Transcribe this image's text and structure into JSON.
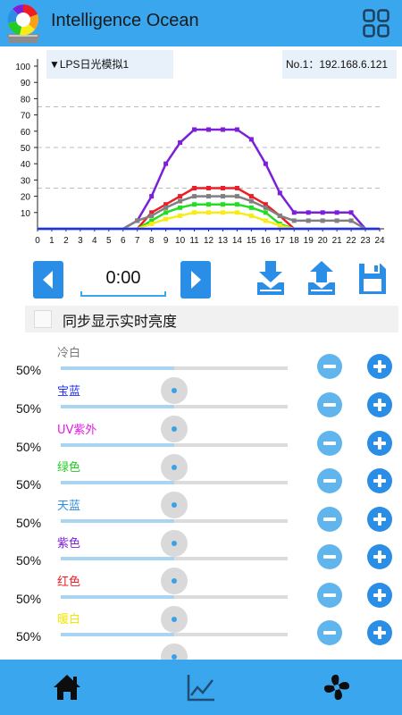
{
  "app": {
    "title": "Intelligence Ocean",
    "logo_icon": "color-wheel-logo-icon",
    "menu_icon": "grid-menu-icon"
  },
  "chart_header": {
    "profile": "▼LPS日光模拟1",
    "device": "No.1：192.168.6.121"
  },
  "chart_data": {
    "type": "line",
    "x": [
      0,
      1,
      2,
      3,
      4,
      5,
      6,
      7,
      8,
      9,
      10,
      11,
      12,
      13,
      14,
      15,
      16,
      17,
      18,
      19,
      20,
      21,
      22,
      23,
      24
    ],
    "xlim": [
      0,
      24
    ],
    "ylim": [
      0,
      100
    ],
    "y_ticks": [
      10,
      20,
      30,
      40,
      50,
      60,
      70,
      80,
      90,
      100
    ],
    "dashed_lines": [
      25,
      50,
      75
    ],
    "series": [
      {
        "color": "#7b1fd9",
        "values": [
          0,
          0,
          0,
          0,
          0,
          0,
          0,
          5,
          20,
          40,
          53,
          61,
          61,
          61,
          61,
          55,
          40,
          22,
          10,
          10,
          10,
          10,
          10,
          0,
          0
        ]
      },
      {
        "color": "#ee1c24",
        "values": [
          0,
          0,
          0,
          0,
          0,
          0,
          0,
          0,
          10,
          15,
          20,
          25,
          25,
          25,
          25,
          20,
          15,
          8,
          0,
          0,
          0,
          0,
          0,
          0,
          0
        ]
      },
      {
        "color": "#808080",
        "values": [
          0,
          0,
          0,
          0,
          0,
          0,
          0,
          5,
          8,
          13,
          17,
          20,
          20,
          20,
          20,
          17,
          13,
          8,
          5,
          5,
          5,
          5,
          5,
          0,
          0
        ]
      },
      {
        "color": "#22dd22",
        "values": [
          0,
          0,
          0,
          0,
          0,
          0,
          0,
          0,
          5,
          10,
          13,
          15,
          15,
          15,
          15,
          13,
          10,
          3,
          0,
          0,
          0,
          0,
          0,
          0,
          0
        ]
      },
      {
        "color": "#f7ec16",
        "values": [
          0,
          0,
          0,
          0,
          0,
          0,
          0,
          0,
          3,
          6,
          8,
          10,
          10,
          10,
          10,
          8,
          5,
          2,
          0,
          0,
          0,
          0,
          0,
          0,
          0
        ]
      },
      {
        "color": "#1e2cff",
        "values": [
          0,
          0,
          0,
          0,
          0,
          0,
          0,
          0,
          0,
          0,
          0,
          0,
          0,
          0,
          0,
          0,
          0,
          0,
          0,
          0,
          0,
          0,
          0,
          0,
          0
        ]
      }
    ]
  },
  "time": {
    "value": "0:00",
    "prev_icon": "left-arrow-icon",
    "next_icon": "right-arrow-icon",
    "download_icon": "download-icon",
    "upload_icon": "upload-icon",
    "save_icon": "save-icon"
  },
  "sync": {
    "label": "同步显示实时亮度",
    "checked": false
  },
  "channels": [
    {
      "name": "冷白",
      "value": "50%",
      "level": 0.5,
      "color": "#777777"
    },
    {
      "name": "宝蓝",
      "value": "50%",
      "level": 0.5,
      "color": "#1e2cff"
    },
    {
      "name": "UV紫外",
      "value": "50%",
      "level": 0.5,
      "color": "#e61ae6"
    },
    {
      "name": "绿色",
      "value": "50%",
      "level": 0.5,
      "color": "#22cc22"
    },
    {
      "name": "天蓝",
      "value": "50%",
      "level": 0.5,
      "color": "#2a8de6"
    },
    {
      "name": "紫色",
      "value": "50%",
      "level": 0.5,
      "color": "#7b1fd9"
    },
    {
      "name": "红色",
      "value": "50%",
      "level": 0.5,
      "color": "#ee1c24"
    },
    {
      "name": "暖白",
      "value": "50%",
      "level": 0.5,
      "color": "#f2e600"
    }
  ],
  "bottom_nav": {
    "home_icon": "home-icon",
    "chart_icon": "line-chart-icon",
    "fan_icon": "fan-icon"
  },
  "colors": {
    "header": "#39a6ee",
    "accent": "#2a8de6",
    "button_light": "#60b5ec"
  }
}
